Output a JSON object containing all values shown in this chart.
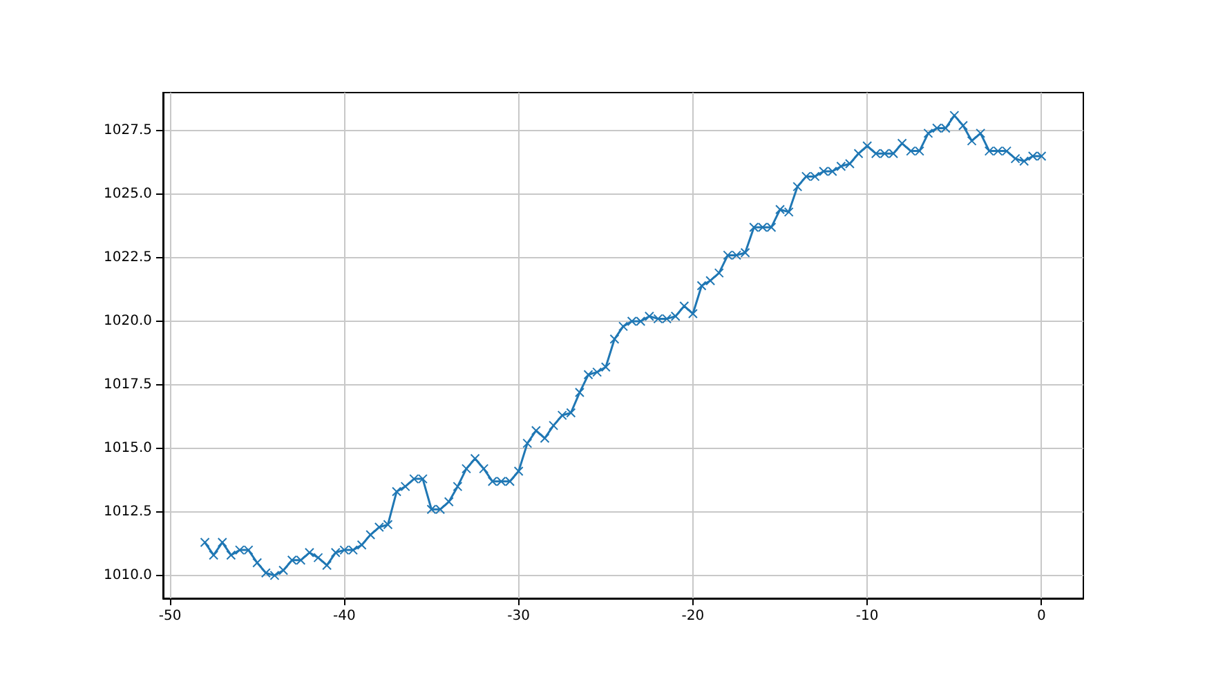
{
  "chart_data": {
    "type": "line",
    "x": [
      -48,
      -47.5,
      -47,
      -46.5,
      -46,
      -45.5,
      -45,
      -44.5,
      -44,
      -43.5,
      -43,
      -42.5,
      -42,
      -41.5,
      -41,
      -40.5,
      -40,
      -39.5,
      -39,
      -38.5,
      -38,
      -37.5,
      -37,
      -36.5,
      -36,
      -35.5,
      -35,
      -34.5,
      -34,
      -33.5,
      -33,
      -32.5,
      -32,
      -31.5,
      -31,
      -30.5,
      -30,
      -29.5,
      -29,
      -28.5,
      -28,
      -27.5,
      -27,
      -26.5,
      -26,
      -25.5,
      -25,
      -24.5,
      -24,
      -23.5,
      -23,
      -22.5,
      -22,
      -21.5,
      -21,
      -20.5,
      -20,
      -19.5,
      -19,
      -18.5,
      -18,
      -17.5,
      -17,
      -16.5,
      -16,
      -15.5,
      -15,
      -14.5,
      -14,
      -13.5,
      -13,
      -12.5,
      -12,
      -11.5,
      -11,
      -10.5,
      -10,
      -9.5,
      -9,
      -8.5,
      -8,
      -7.5,
      -7,
      -6.5,
      -6,
      -5.5,
      -5,
      -4.5,
      -4,
      -3.5,
      -3,
      -2.5,
      -2,
      -1.5,
      -1,
      -0.5,
      0
    ],
    "series": [
      {
        "color": "#1f77b4",
        "values": [
          1011.3,
          1010.8,
          1011.3,
          1010.8,
          1011.0,
          1011.0,
          1010.5,
          1010.1,
          1010.0,
          1010.2,
          1010.6,
          1010.6,
          1010.9,
          1010.7,
          1010.4,
          1010.9,
          1011.0,
          1011.0,
          1011.2,
          1011.6,
          1011.9,
          1012.0,
          1013.3,
          1013.5,
          1013.8,
          1013.8,
          1012.6,
          1012.6,
          1012.9,
          1013.5,
          1014.2,
          1014.6,
          1014.2,
          1013.7,
          1013.7,
          1013.7,
          1014.1,
          1015.2,
          1015.7,
          1015.4,
          1015.9,
          1016.3,
          1016.4,
          1017.2,
          1017.9,
          1018.0,
          1018.2,
          1019.3,
          1019.8,
          1020.0,
          1020.0,
          1020.2,
          1020.1,
          1020.1,
          1020.2,
          1020.6,
          1020.3,
          1021.4,
          1021.6,
          1021.9,
          1022.6,
          1022.6,
          1022.7,
          1023.7,
          1023.7,
          1023.7,
          1024.4,
          1024.3,
          1025.3,
          1025.7,
          1025.7,
          1025.9,
          1025.9,
          1026.1,
          1026.2,
          1026.6,
          1026.9,
          1026.6,
          1026.6,
          1026.6,
          1027.0,
          1026.7,
          1026.7,
          1027.4,
          1027.6,
          1027.6,
          1028.1,
          1027.7,
          1027.1,
          1027.4,
          1026.7,
          1026.7,
          1026.7,
          1026.4,
          1026.3,
          1026.5,
          1026.5
        ]
      }
    ],
    "xlim": [
      -50.4,
      2.4
    ],
    "xticks": [
      -50,
      -40,
      -30,
      -20,
      -10,
      0
    ],
    "ylim": [
      1009.1,
      1029.0
    ],
    "yticks": [
      {
        "value": 1010,
        "label": "1010.0"
      },
      {
        "value": 1012.5,
        "label": "1012.5"
      },
      {
        "value": 1015,
        "label": "1015.0"
      },
      {
        "value": 1017.5,
        "label": "1017.5"
      },
      {
        "value": 1020,
        "label": "1020.0"
      },
      {
        "value": 1022.5,
        "label": "1022.5"
      },
      {
        "value": 1025,
        "label": "1025.0"
      },
      {
        "value": 1027.5,
        "label": "1027.5"
      }
    ],
    "grid": true,
    "marker": "cross"
  }
}
